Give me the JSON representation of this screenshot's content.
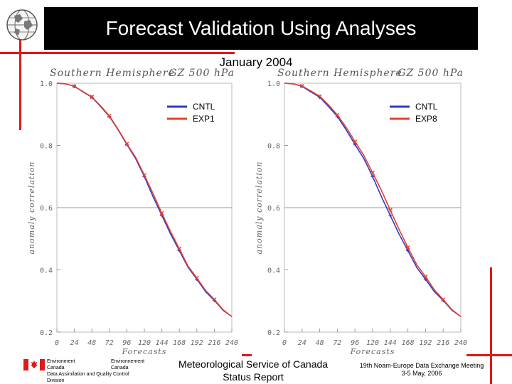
{
  "slide": {
    "title": "Forecast Validation Using Analyses",
    "subtitle": "January 2004"
  },
  "footer": {
    "org_en": "Environment Canada",
    "org_fr": "Environnement Canada",
    "division": "Data Assimilation and Quality Control Division",
    "center_line1": "Meteorological Service of Canada",
    "center_line2": "Status Report",
    "right_line1": "19th Noam-Europe Data Exchange Meeting",
    "right_line2": "3-5 May, 2006"
  },
  "colors": {
    "cntl": "#2b3bcc",
    "exp": "#e8402a",
    "red_accent": "#e01818",
    "title_bg": "#000000"
  },
  "chart_data": [
    {
      "type": "line",
      "title": "Southern Hemisphere",
      "title_right": "GZ 500 hPa",
      "xlabel": "Forecasts",
      "ylabel": "anomaly correlation",
      "ylim": [
        0.2,
        1.0
      ],
      "yticks": [
        "1.0",
        "0.8",
        "0.6",
        "0.4",
        "0.2"
      ],
      "ytick_values": [
        1.0,
        0.8,
        0.6,
        0.4,
        0.2
      ],
      "reference_line": 0.6,
      "xticks": [
        "0",
        "24",
        "48",
        "72",
        "96",
        "120",
        "144",
        "168",
        "192",
        "216",
        "240"
      ],
      "x": [
        0,
        12,
        24,
        36,
        48,
        60,
        72,
        84,
        96,
        108,
        120,
        132,
        144,
        156,
        168,
        180,
        192,
        204,
        216,
        228,
        240
      ],
      "series": [
        {
          "name": "CNTL",
          "values": [
            1.0,
            0.998,
            0.99,
            0.972,
            0.955,
            0.925,
            0.893,
            0.85,
            0.803,
            0.758,
            0.7,
            0.635,
            0.575,
            0.515,
            0.462,
            0.408,
            0.37,
            0.33,
            0.302,
            0.27,
            0.25
          ]
        },
        {
          "name": "EXP1",
          "values": [
            1.0,
            0.998,
            0.99,
            0.973,
            0.956,
            0.927,
            0.895,
            0.852,
            0.805,
            0.762,
            0.705,
            0.645,
            0.582,
            0.523,
            0.468,
            0.412,
            0.374,
            0.334,
            0.305,
            0.272,
            0.25
          ]
        }
      ]
    },
    {
      "type": "line",
      "title": "Southern Hemisphere",
      "title_right": "GZ 500 hPa",
      "xlabel": "Forecasts",
      "ylabel": "anomaly correlation",
      "ylim": [
        0.2,
        1.0
      ],
      "yticks": [
        "1.0",
        "0.8",
        "0.6",
        "0.4",
        "0.2"
      ],
      "ytick_values": [
        1.0,
        0.8,
        0.6,
        0.4,
        0.2
      ],
      "reference_line": 0.6,
      "xticks": [
        "0",
        "24",
        "48",
        "72",
        "96",
        "120",
        "144",
        "168",
        "192",
        "216",
        "240"
      ],
      "x": [
        0,
        12,
        24,
        36,
        48,
        60,
        72,
        84,
        96,
        108,
        120,
        132,
        144,
        156,
        168,
        180,
        192,
        204,
        216,
        228,
        240
      ],
      "series": [
        {
          "name": "CNTL",
          "values": [
            1.0,
            0.998,
            0.99,
            0.972,
            0.955,
            0.925,
            0.893,
            0.85,
            0.803,
            0.758,
            0.7,
            0.635,
            0.575,
            0.515,
            0.462,
            0.408,
            0.37,
            0.33,
            0.302,
            0.27,
            0.25
          ]
        },
        {
          "name": "EXP8",
          "values": [
            1.0,
            0.998,
            0.991,
            0.975,
            0.958,
            0.93,
            0.898,
            0.858,
            0.812,
            0.768,
            0.712,
            0.655,
            0.592,
            0.53,
            0.472,
            0.417,
            0.378,
            0.336,
            0.305,
            0.272,
            0.25
          ]
        }
      ]
    }
  ]
}
